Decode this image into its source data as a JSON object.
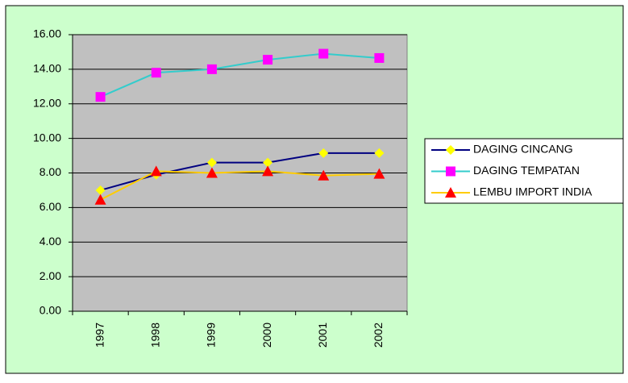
{
  "chart_data": {
    "type": "line",
    "categories": [
      "1997",
      "1998",
      "1999",
      "2000",
      "2001",
      "2002"
    ],
    "series": [
      {
        "name": "DAGING CINCANG",
        "color": "#000080",
        "marker": "diamond",
        "marker_color": "#ffff00",
        "values": [
          7.0,
          7.9,
          8.6,
          8.6,
          9.15,
          9.15
        ]
      },
      {
        "name": "DAGING TEMPATAN",
        "color": "#33cccc",
        "marker": "square",
        "marker_color": "#ff00ff",
        "values": [
          12.4,
          13.8,
          14.0,
          14.55,
          14.9,
          14.65
        ]
      },
      {
        "name": "LEMBU IMPORT INDIA",
        "color": "#ffcc00",
        "marker": "triangle",
        "marker_color": "#ff0000",
        "values": [
          6.45,
          8.1,
          8.0,
          8.1,
          7.85,
          7.95
        ]
      }
    ],
    "ylim": [
      0,
      16
    ],
    "yticks": [
      {
        "value": 0,
        "label": "0.00"
      },
      {
        "value": 2,
        "label": "2.00"
      },
      {
        "value": 4,
        "label": "4.00"
      },
      {
        "value": 6,
        "label": "6.00"
      },
      {
        "value": 8,
        "label": "8.00"
      },
      {
        "value": 10,
        "label": "10.00"
      },
      {
        "value": 12,
        "label": "12.00"
      },
      {
        "value": 14,
        "label": "14.00"
      },
      {
        "value": 16,
        "label": "16.00"
      }
    ],
    "grid": true,
    "legend": "right"
  }
}
